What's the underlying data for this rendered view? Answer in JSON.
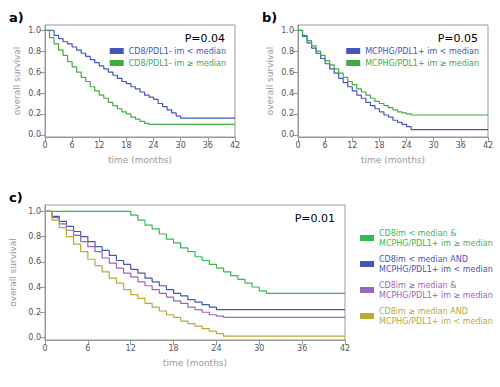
{
  "chart_data": [
    {
      "type": "step",
      "title": "P=0.04",
      "annotations": [
        "a)"
      ],
      "xlabel": "time (months)",
      "ylabel": "overall survival",
      "xlim": [
        0,
        42
      ],
      "ylim": [
        -0.02,
        1.05
      ],
      "xticks": [
        0,
        6,
        12,
        18,
        24,
        30,
        36,
        42
      ],
      "yticks": [
        {
          "value": 0.0,
          "label": "0.0"
        },
        0.2,
        0.4,
        0.6,
        0.8,
        {
          "value": 1.0,
          "label": "1.0"
        }
      ],
      "grid": false,
      "legend": "upper right",
      "series": [
        {
          "name": "CD8/PDL1- im < median",
          "color": "#4455bb",
          "x": [
            0,
            2,
            3,
            4,
            5,
            6,
            7,
            8,
            9,
            10,
            11,
            12,
            13,
            14,
            15,
            16,
            17,
            18,
            19,
            20,
            21,
            22,
            23,
            24,
            25,
            26,
            27,
            28,
            29,
            30,
            31,
            32,
            42
          ],
          "values": [
            1.0,
            0.95,
            0.92,
            0.89,
            0.87,
            0.84,
            0.81,
            0.78,
            0.75,
            0.72,
            0.69,
            0.66,
            0.63,
            0.6,
            0.57,
            0.54,
            0.51,
            0.49,
            0.46,
            0.44,
            0.41,
            0.38,
            0.36,
            0.34,
            0.3,
            0.27,
            0.24,
            0.21,
            0.18,
            0.16,
            0.16,
            0.16,
            0.16
          ]
        },
        {
          "name": "CD8/PDL1- im ≥ median",
          "color": "#44aa44",
          "x": [
            0,
            1,
            2,
            3,
            4,
            5,
            6,
            7,
            8,
            9,
            10,
            11,
            12,
            13,
            14,
            15,
            16,
            17,
            18,
            19,
            20,
            21,
            22,
            23,
            24,
            42
          ],
          "values": [
            1.0,
            0.93,
            0.87,
            0.81,
            0.76,
            0.7,
            0.65,
            0.6,
            0.55,
            0.51,
            0.46,
            0.42,
            0.38,
            0.35,
            0.31,
            0.28,
            0.25,
            0.22,
            0.2,
            0.17,
            0.15,
            0.13,
            0.11,
            0.1,
            0.1,
            0.1
          ]
        }
      ]
    },
    {
      "type": "step",
      "title": "P=0.05",
      "annotations": [
        "b)"
      ],
      "xlabel": "time (months)",
      "ylabel": "overall survival",
      "xlim": [
        0,
        42
      ],
      "ylim": [
        -0.02,
        1.05
      ],
      "xticks": [
        0,
        6,
        12,
        18,
        24,
        30,
        36,
        42
      ],
      "yticks": [
        {
          "value": 0.0,
          "label": "0.0"
        },
        0.2,
        0.4,
        0.6,
        0.8,
        {
          "value": 1.0,
          "label": "1.0"
        }
      ],
      "grid": false,
      "legend": "upper right",
      "series": [
        {
          "name": "MCPHG/PDL1+ im < median",
          "color": "#4455bb",
          "x": [
            0,
            1,
            2,
            3,
            4,
            5,
            6,
            7,
            8,
            9,
            10,
            11,
            12,
            13,
            14,
            15,
            16,
            17,
            18,
            19,
            20,
            21,
            22,
            23,
            24,
            25,
            42
          ],
          "values": [
            1.0,
            0.94,
            0.88,
            0.83,
            0.78,
            0.73,
            0.68,
            0.63,
            0.59,
            0.54,
            0.5,
            0.46,
            0.42,
            0.38,
            0.35,
            0.31,
            0.28,
            0.25,
            0.22,
            0.19,
            0.17,
            0.14,
            0.12,
            0.1,
            0.08,
            0.05,
            0.05
          ]
        },
        {
          "name": "MCPHG/PDL1+ im ≥ median",
          "color": "#44aa44",
          "x": [
            0,
            1,
            2,
            3,
            4,
            5,
            6,
            7,
            8,
            9,
            10,
            11,
            12,
            13,
            14,
            15,
            16,
            17,
            18,
            19,
            20,
            21,
            22,
            23,
            24,
            25,
            26,
            27,
            28,
            29,
            30,
            36,
            42
          ],
          "values": [
            1.0,
            0.95,
            0.9,
            0.85,
            0.8,
            0.76,
            0.71,
            0.67,
            0.63,
            0.59,
            0.55,
            0.51,
            0.48,
            0.44,
            0.41,
            0.38,
            0.35,
            0.32,
            0.3,
            0.28,
            0.26,
            0.24,
            0.22,
            0.21,
            0.2,
            0.19,
            0.19,
            0.19,
            0.19,
            0.19,
            0.19,
            0.19,
            0.19
          ]
        }
      ]
    },
    {
      "type": "step",
      "title": "P=0.01",
      "annotations": [
        "c)"
      ],
      "xlabel": "time (months)",
      "ylabel": "overall survival",
      "xlim": [
        0,
        42
      ],
      "ylim": [
        -0.02,
        1.05
      ],
      "xticks": [
        0,
        6,
        12,
        18,
        24,
        30,
        36,
        42
      ],
      "yticks": [
        {
          "value": 0.0,
          "label": "0.0"
        },
        0.2,
        0.4,
        0.6,
        0.8,
        {
          "value": 1.0,
          "label": "1.0"
        }
      ],
      "grid": false,
      "legend": "right",
      "series": [
        {
          "name": "CD8im < median &\nMCPHG/PDL1+ im ≥ median",
          "color": "#33bb55",
          "x": [
            0,
            1,
            2,
            3,
            4,
            5,
            6,
            7,
            8,
            9,
            10,
            11,
            12,
            13,
            14,
            15,
            16,
            17,
            18,
            19,
            20,
            21,
            22,
            23,
            24,
            25,
            26,
            27,
            28,
            29,
            30,
            31,
            32,
            42
          ],
          "values": [
            1.0,
            1.0,
            1.0,
            1.0,
            1.0,
            1.0,
            1.0,
            1.0,
            1.0,
            1.0,
            1.0,
            1.0,
            0.97,
            0.93,
            0.89,
            0.86,
            0.82,
            0.78,
            0.75,
            0.71,
            0.68,
            0.64,
            0.61,
            0.58,
            0.55,
            0.52,
            0.49,
            0.46,
            0.43,
            0.4,
            0.37,
            0.35,
            0.35,
            0.35
          ]
        },
        {
          "name": "CD8im < median AND\nMCPHG/PDL1+ im < median",
          "color": "#4455bb",
          "x": [
            0,
            1,
            2,
            3,
            4,
            5,
            6,
            7,
            8,
            9,
            10,
            11,
            12,
            13,
            14,
            15,
            16,
            17,
            18,
            19,
            20,
            21,
            22,
            23,
            24,
            25,
            42
          ],
          "values": [
            1.0,
            0.96,
            0.92,
            0.88,
            0.84,
            0.8,
            0.76,
            0.72,
            0.69,
            0.65,
            0.61,
            0.58,
            0.54,
            0.51,
            0.47,
            0.44,
            0.41,
            0.38,
            0.35,
            0.33,
            0.3,
            0.28,
            0.26,
            0.24,
            0.22,
            0.22,
            0.22
          ]
        },
        {
          "name": "CD8im ≥ median &\nMCPHG/PDL1+ im ≥ median",
          "color": "#9966bb",
          "x": [
            0,
            1,
            2,
            3,
            4,
            5,
            6,
            7,
            8,
            9,
            10,
            11,
            12,
            13,
            14,
            15,
            16,
            17,
            18,
            19,
            20,
            21,
            22,
            23,
            24,
            25,
            26,
            27,
            42
          ],
          "values": [
            1.0,
            0.95,
            0.9,
            0.85,
            0.81,
            0.76,
            0.72,
            0.68,
            0.63,
            0.59,
            0.55,
            0.51,
            0.48,
            0.44,
            0.41,
            0.38,
            0.35,
            0.32,
            0.29,
            0.27,
            0.24,
            0.22,
            0.2,
            0.18,
            0.17,
            0.16,
            0.16,
            0.16,
            0.16
          ]
        },
        {
          "name": "CD8im ≥ median AND\nMCPHG/PDL1+ im < median",
          "color": "#bbaa33",
          "x": [
            0,
            1,
            2,
            3,
            4,
            5,
            6,
            7,
            8,
            9,
            10,
            11,
            12,
            13,
            14,
            15,
            16,
            17,
            18,
            19,
            20,
            21,
            22,
            23,
            24,
            25,
            42
          ],
          "values": [
            1.0,
            0.93,
            0.87,
            0.8,
            0.74,
            0.68,
            0.62,
            0.57,
            0.52,
            0.47,
            0.43,
            0.38,
            0.34,
            0.31,
            0.27,
            0.24,
            0.21,
            0.18,
            0.16,
            0.13,
            0.11,
            0.09,
            0.07,
            0.05,
            0.03,
            0.01,
            0.01
          ]
        }
      ]
    }
  ]
}
